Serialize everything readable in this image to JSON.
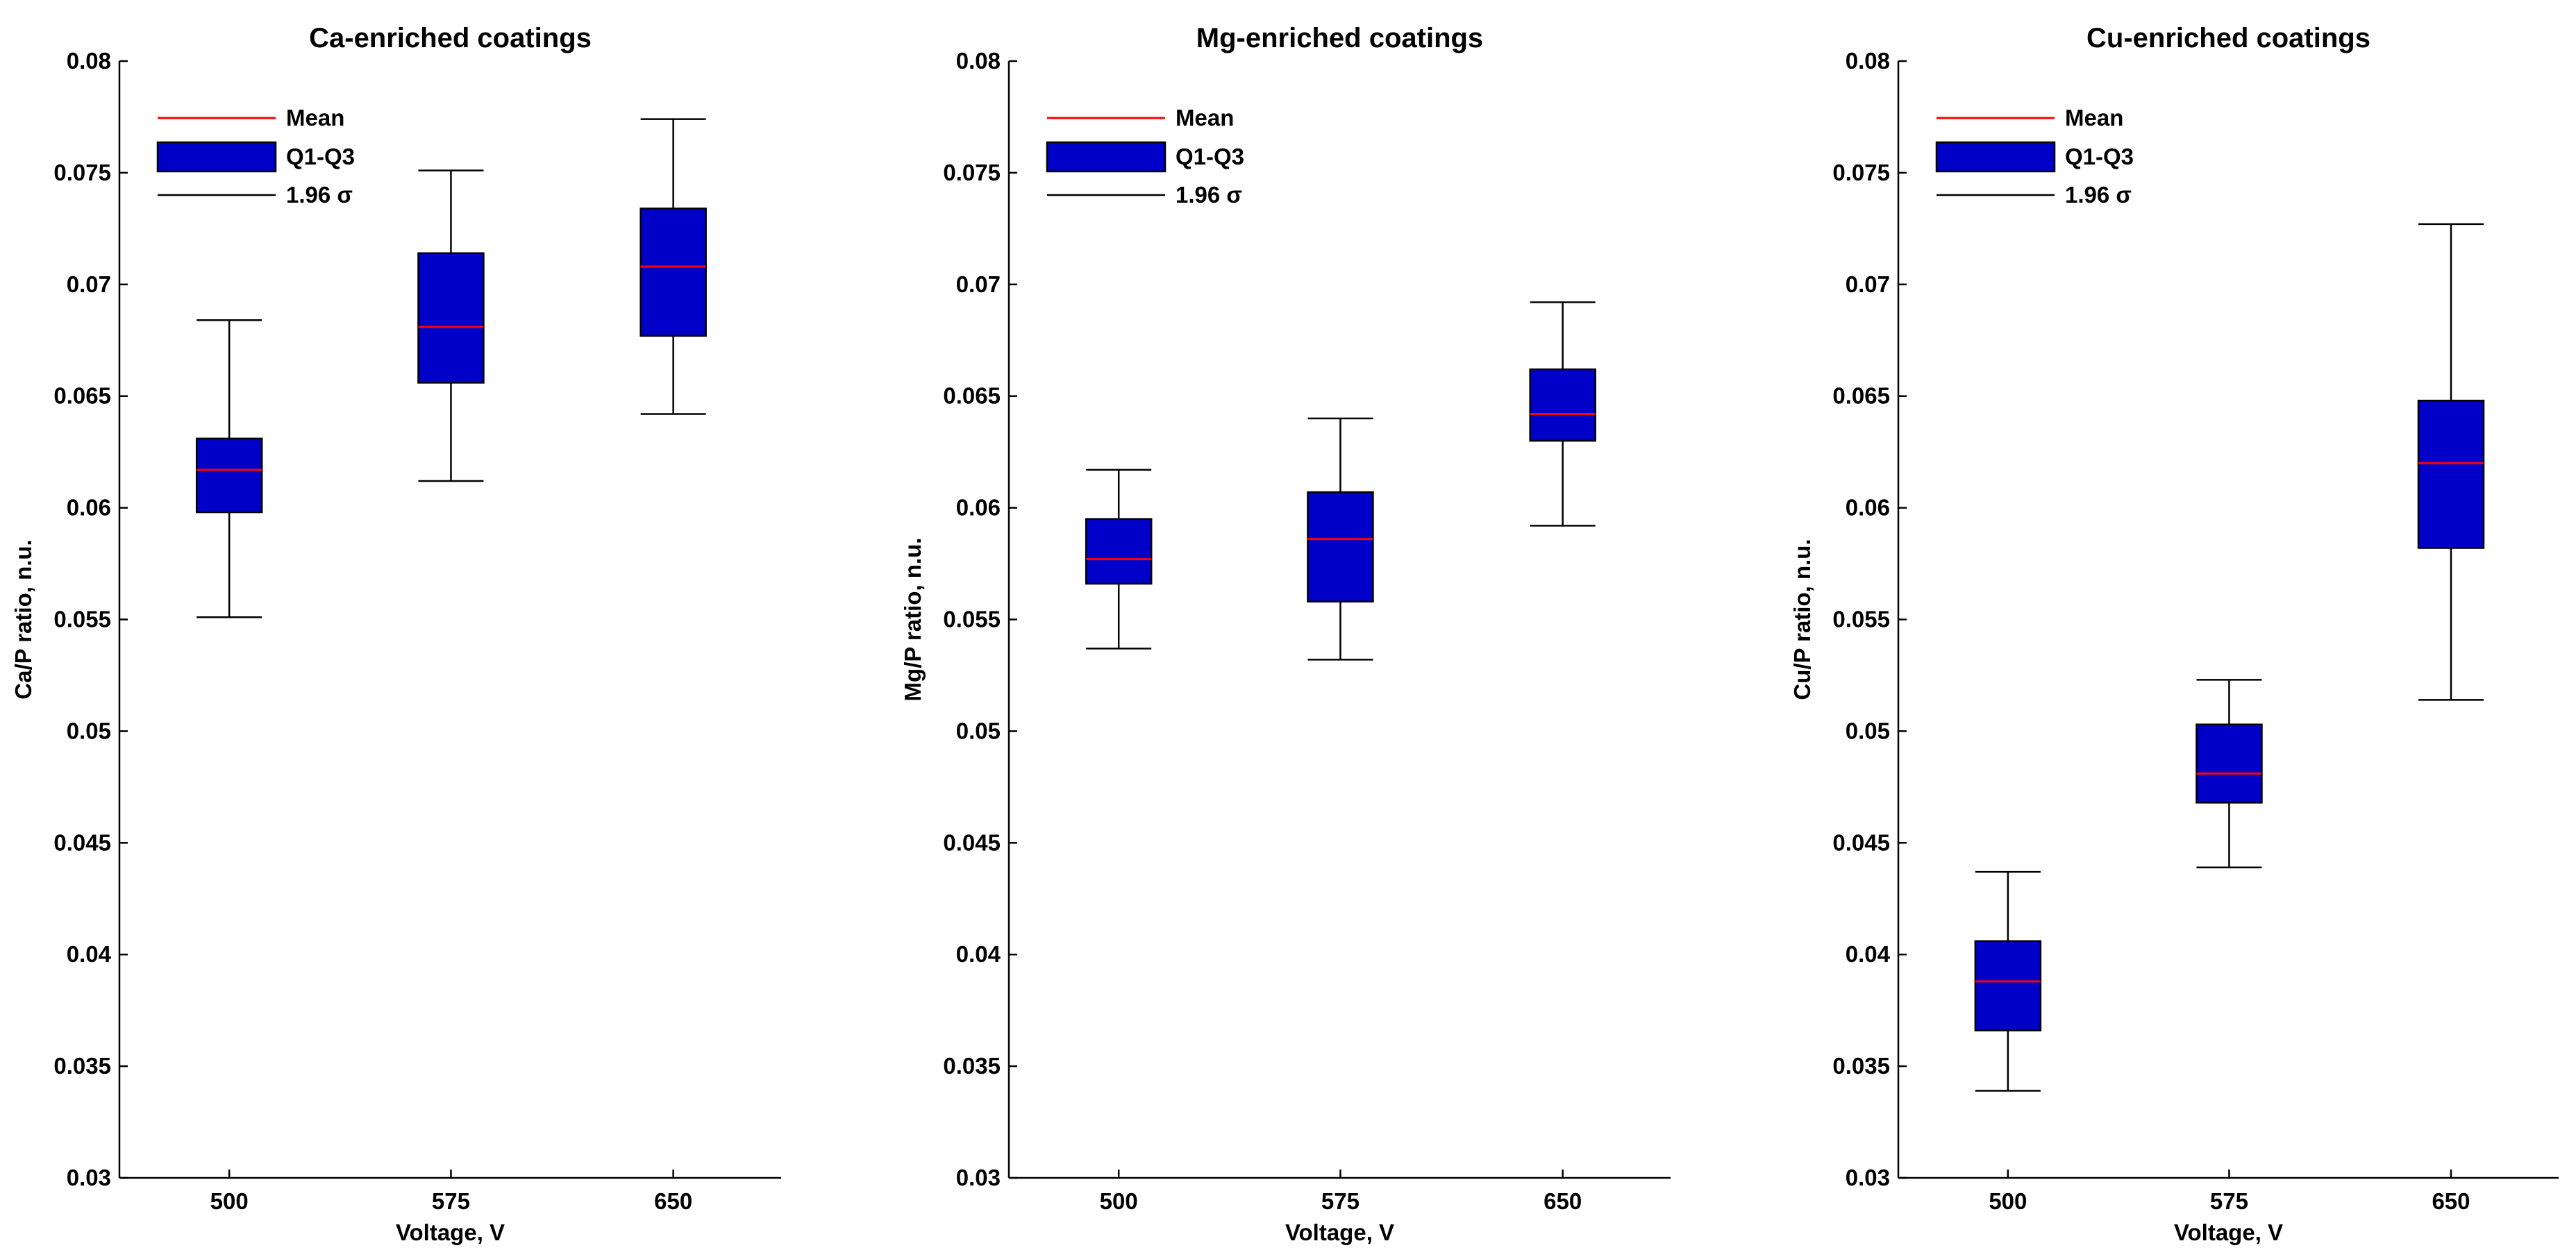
{
  "colors": {
    "box_fill": "#0000c8",
    "mean_line": "#ff0000",
    "axis": "#000000",
    "whisker": "#000000"
  },
  "legend": {
    "mean": "Mean",
    "iqr": "Q1-Q3",
    "sigma": "1.96 σ"
  },
  "chart_data": [
    {
      "type": "box",
      "title": "Ca-enriched coatings",
      "xlabel": "Voltage, V",
      "ylabel": "Ca/P ratio, n.u.",
      "ylim": [
        0.03,
        0.08
      ],
      "yticks": [
        "0.03",
        "0.035",
        "0.04",
        "0.045",
        "0.05",
        "0.055",
        "0.06",
        "0.065",
        "0.07",
        "0.075",
        "0.08"
      ],
      "categories": [
        "500",
        "575",
        "650"
      ],
      "boxes": [
        {
          "category": "500",
          "whisker_low": 0.0551,
          "q1": 0.0598,
          "mean": 0.0617,
          "q3": 0.0631,
          "whisker_high": 0.0684
        },
        {
          "category": "575",
          "whisker_low": 0.0612,
          "q1": 0.0656,
          "mean": 0.0681,
          "q3": 0.0714,
          "whisker_high": 0.0751
        },
        {
          "category": "650",
          "whisker_low": 0.0642,
          "q1": 0.0677,
          "mean": 0.0708,
          "q3": 0.0734,
          "whisker_high": 0.0774
        }
      ]
    },
    {
      "type": "box",
      "title": "Mg-enriched coatings",
      "xlabel": "Voltage, V",
      "ylabel": "Mg/P ratio, n.u.",
      "ylim": [
        0.03,
        0.08
      ],
      "yticks": [
        "0.03",
        "0.035",
        "0.04",
        "0.045",
        "0.05",
        "0.055",
        "0.06",
        "0.065",
        "0.07",
        "0.075",
        "0.08"
      ],
      "categories": [
        "500",
        "575",
        "650"
      ],
      "boxes": [
        {
          "category": "500",
          "whisker_low": 0.0537,
          "q1": 0.0566,
          "mean": 0.0577,
          "q3": 0.0595,
          "whisker_high": 0.0617
        },
        {
          "category": "575",
          "whisker_low": 0.0532,
          "q1": 0.0558,
          "mean": 0.0586,
          "q3": 0.0607,
          "whisker_high": 0.064
        },
        {
          "category": "650",
          "whisker_low": 0.0592,
          "q1": 0.063,
          "mean": 0.0642,
          "q3": 0.0662,
          "whisker_high": 0.0692
        }
      ]
    },
    {
      "type": "box",
      "title": "Cu-enriched coatings",
      "xlabel": "Voltage, V",
      "ylabel": "Cu/P ratio, n.u.",
      "ylim": [
        0.03,
        0.08
      ],
      "yticks": [
        "0.03",
        "0.035",
        "0.04",
        "0.045",
        "0.05",
        "0.055",
        "0.06",
        "0.065",
        "0.07",
        "0.075",
        "0.08"
      ],
      "categories": [
        "500",
        "575",
        "650"
      ],
      "boxes": [
        {
          "category": "500",
          "whisker_low": 0.0339,
          "q1": 0.0366,
          "mean": 0.0388,
          "q3": 0.0406,
          "whisker_high": 0.0437
        },
        {
          "category": "575",
          "whisker_low": 0.0439,
          "q1": 0.0468,
          "mean": 0.0481,
          "q3": 0.0503,
          "whisker_high": 0.0523
        },
        {
          "category": "650",
          "whisker_low": 0.0514,
          "q1": 0.0582,
          "mean": 0.062,
          "q3": 0.0648,
          "whisker_high": 0.0727
        }
      ]
    }
  ]
}
